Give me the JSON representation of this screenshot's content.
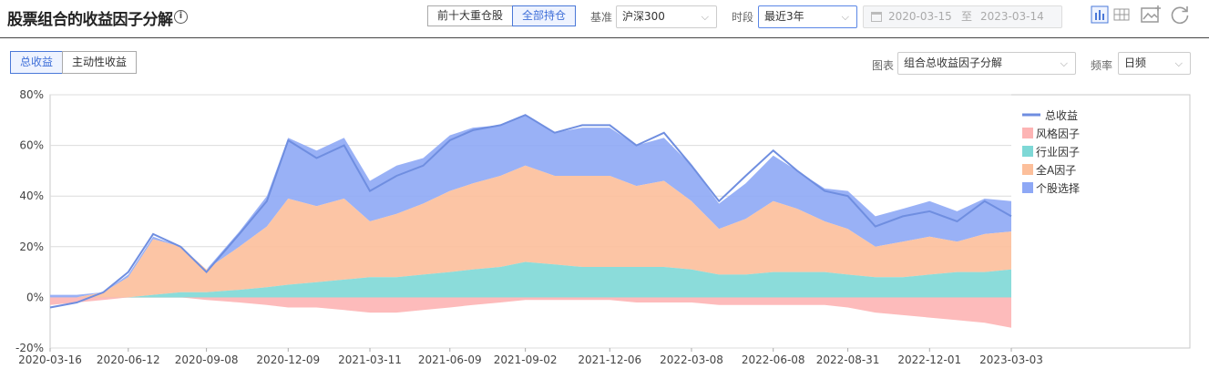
{
  "header": {
    "title": "股票组合的收益因子分解",
    "info_icon": "info-icon",
    "holding_toggle": [
      "前十大重仓股",
      "全部持仓"
    ],
    "benchmark_label": "基准",
    "benchmark_value": "沪深300",
    "period_label": "时段",
    "period_value": "最近3年",
    "date_start": "2020-03-15",
    "date_sep": "至",
    "date_end": "2023-03-14"
  },
  "tabs": [
    "总收益",
    "主动性收益"
  ],
  "controls": {
    "chart_label": "图表",
    "chart_value": "组合总收益因子分解",
    "freq_label": "频率",
    "freq_value": "日频"
  },
  "colors": {
    "total": "#6f8ee0",
    "style": "#fdb4b4",
    "industry": "#7ed8d6",
    "market": "#fcbf9b",
    "stock": "#8ea8f5",
    "accent": "#4a78d8"
  },
  "chart_data": {
    "type": "area",
    "ylim": [
      -20,
      80
    ],
    "yticks": [
      "80%",
      "60%",
      "40%",
      "20%",
      "0%",
      "-20%"
    ],
    "x_tick_labels": [
      "2020-03-16",
      "2020-06-12",
      "2020-09-08",
      "2020-12-09",
      "2021-03-11",
      "2021-06-09",
      "2021-09-02",
      "2021-12-06",
      "2022-03-08",
      "2022-06-08",
      "2022-08-31",
      "2022-12-01",
      "2023-03-03"
    ],
    "x": [
      "2020-03-16",
      "2020-04-15",
      "2020-05-15",
      "2020-06-12",
      "2020-07-10",
      "2020-08-10",
      "2020-09-08",
      "2020-10-15",
      "2020-11-15",
      "2020-12-09",
      "2021-01-10",
      "2021-02-10",
      "2021-03-11",
      "2021-04-10",
      "2021-05-10",
      "2021-06-09",
      "2021-07-05",
      "2021-08-05",
      "2021-09-02",
      "2021-10-05",
      "2021-11-05",
      "2021-12-06",
      "2022-01-05",
      "2022-02-05",
      "2022-03-08",
      "2022-04-08",
      "2022-05-08",
      "2022-06-08",
      "2022-07-05",
      "2022-08-05",
      "2022-08-31",
      "2022-10-01",
      "2022-11-01",
      "2022-12-01",
      "2023-01-01",
      "2023-02-01",
      "2023-03-03"
    ],
    "series": [
      {
        "name": "总收益",
        "key": "total",
        "values": [
          -4,
          -2,
          2,
          10,
          25,
          20,
          10,
          25,
          38,
          62,
          55,
          60,
          42,
          48,
          52,
          62,
          66,
          68,
          72,
          65,
          68,
          68,
          60,
          65,
          52,
          38,
          48,
          58,
          50,
          42,
          40,
          28,
          32,
          34,
          30,
          38,
          32
        ]
      },
      {
        "name": "风格因子",
        "key": "style",
        "values": [
          -3,
          -2,
          -1,
          0,
          0,
          0,
          -1,
          -2,
          -3,
          -4,
          -4,
          -5,
          -6,
          -6,
          -5,
          -4,
          -3,
          -2,
          -1,
          -1,
          -1,
          -1,
          -2,
          -2,
          -2,
          -3,
          -3,
          -3,
          -3,
          -3,
          -4,
          -6,
          -7,
          -8,
          -9,
          -10,
          -12
        ]
      },
      {
        "name": "行业因子",
        "key": "industry",
        "values": [
          -1,
          -1,
          0,
          0,
          1,
          2,
          2,
          3,
          4,
          5,
          6,
          7,
          8,
          8,
          9,
          10,
          11,
          12,
          14,
          13,
          12,
          12,
          12,
          12,
          11,
          9,
          9,
          10,
          10,
          10,
          9,
          8,
          8,
          9,
          10,
          10,
          11
        ]
      },
      {
        "name": "全A因子",
        "key": "market",
        "values": [
          -2,
          -1,
          2,
          8,
          22,
          18,
          9,
          17,
          24,
          34,
          30,
          32,
          22,
          25,
          28,
          32,
          34,
          36,
          38,
          35,
          36,
          36,
          32,
          34,
          27,
          18,
          22,
          28,
          25,
          20,
          18,
          12,
          14,
          15,
          12,
          15,
          15
        ]
      },
      {
        "name": "个股选择",
        "key": "stock",
        "values": [
          1,
          1,
          0,
          1,
          1,
          0,
          -1,
          6,
          12,
          24,
          22,
          24,
          16,
          19,
          18,
          22,
          22,
          20,
          20,
          17,
          19,
          19,
          16,
          17,
          14,
          10,
          14,
          18,
          15,
          13,
          15,
          12,
          13,
          14,
          12,
          14,
          12
        ]
      }
    ]
  }
}
